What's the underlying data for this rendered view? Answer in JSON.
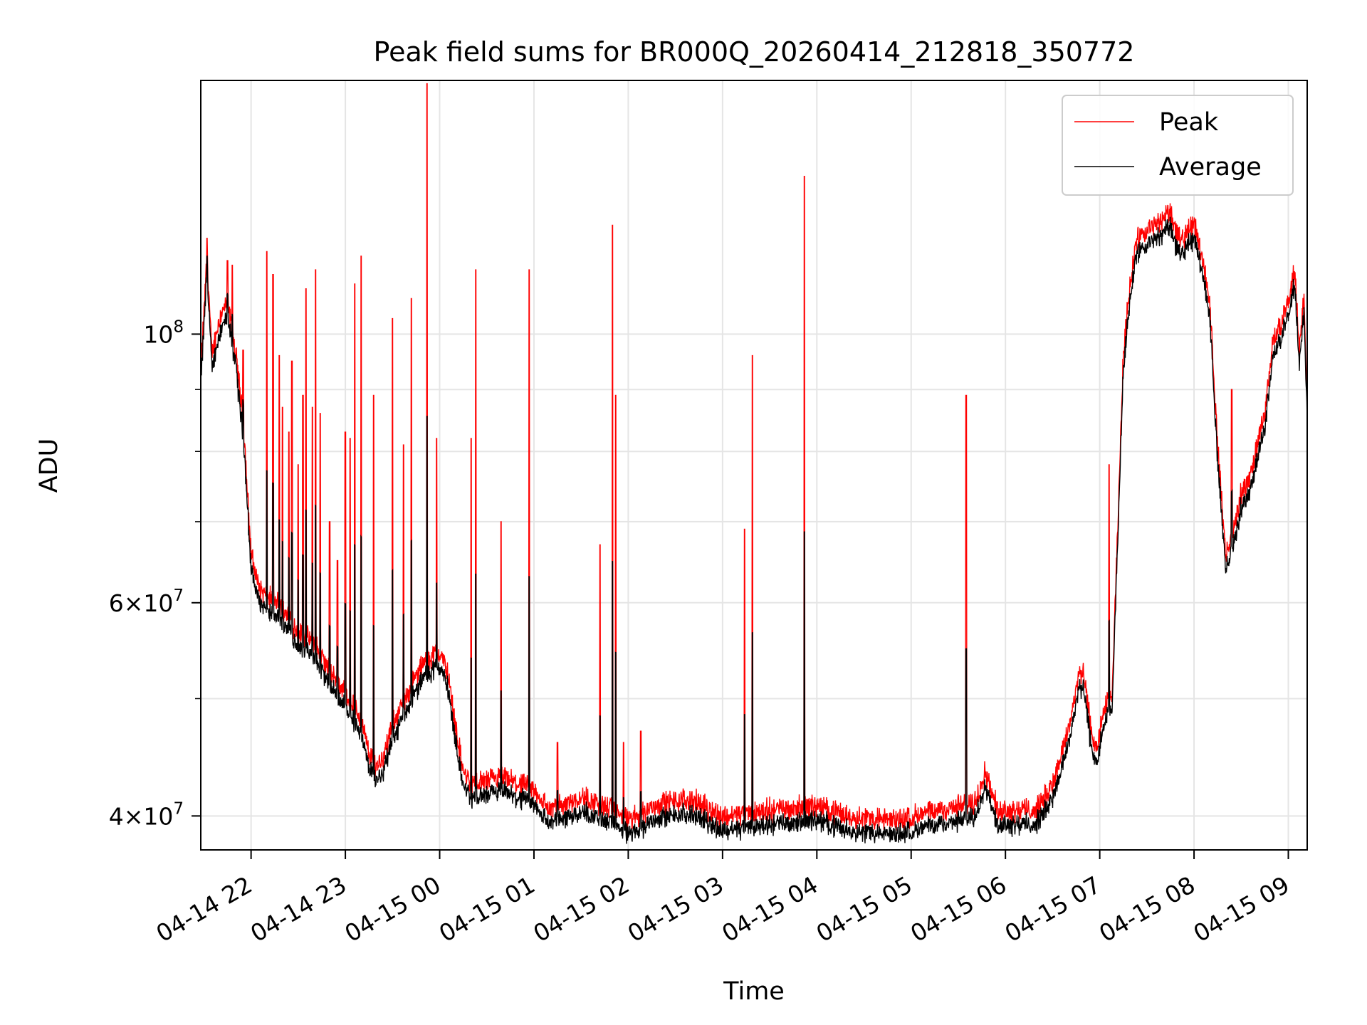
{
  "chart_data": {
    "type": "line",
    "title": "Peak field sums for BR000Q_20260414_212818_350772",
    "xlabel": "Time",
    "ylabel": "ADU",
    "yscale": "log",
    "grid": true,
    "legend_placement": "top-right",
    "x_ticks": [
      "04-14 22",
      "04-14 23",
      "04-15 00",
      "04-15 01",
      "04-15 02",
      "04-15 03",
      "04-15 04",
      "04-15 05",
      "04-15 06",
      "04-15 07",
      "04-15 08",
      "04-15 09"
    ],
    "y_ticks": [
      {
        "value": 40000000,
        "mantissa": "4",
        "exponent": "7"
      },
      {
        "value": 60000000,
        "mantissa": "6",
        "exponent": "7"
      },
      {
        "value": 100000000,
        "mantissa": "",
        "exponent": "8"
      }
    ],
    "xlim": [
      "2026-04-14 21:28",
      "2026-04-15 09:12"
    ],
    "ylim": [
      37500000,
      162000000
    ],
    "series": [
      {
        "name": "Peak",
        "color": "#ff0000",
        "baseline": [
          [
            "2026-04-14 21:28",
            92000000
          ],
          [
            "2026-04-14 21:32",
            115000000
          ],
          [
            "2026-04-14 21:35",
            95000000
          ],
          [
            "2026-04-14 21:40",
            102000000
          ],
          [
            "2026-04-14 21:45",
            105000000
          ],
          [
            "2026-04-14 21:50",
            96000000
          ],
          [
            "2026-04-14 21:55",
            84000000
          ],
          [
            "2026-04-14 22:00",
            65000000
          ],
          [
            "2026-04-14 22:05",
            61000000
          ],
          [
            "2026-04-14 22:10",
            60000000
          ],
          [
            "2026-04-14 22:20",
            59000000
          ],
          [
            "2026-04-14 22:30",
            56000000
          ],
          [
            "2026-04-14 22:40",
            55000000
          ],
          [
            "2026-04-14 22:50",
            52000000
          ],
          [
            "2026-04-14 23:00",
            50000000
          ],
          [
            "2026-04-14 23:10",
            47500000
          ],
          [
            "2026-04-14 23:15",
            44500000
          ],
          [
            "2026-04-14 23:20",
            43500000
          ],
          [
            "2026-04-14 23:25",
            44500000
          ],
          [
            "2026-04-14 23:30",
            47000000
          ],
          [
            "2026-04-14 23:40",
            50000000
          ],
          [
            "2026-04-14 23:50",
            53000000
          ],
          [
            "2026-04-15 00:00",
            54000000
          ],
          [
            "2026-04-15 00:05",
            52000000
          ],
          [
            "2026-04-15 00:10",
            47000000
          ],
          [
            "2026-04-15 00:15",
            43000000
          ],
          [
            "2026-04-15 00:20",
            42000000
          ],
          [
            "2026-04-15 00:40",
            42500000
          ],
          [
            "2026-04-15 01:00",
            41500000
          ],
          [
            "2026-04-15 01:10",
            40000000
          ],
          [
            "2026-04-15 01:30",
            41000000
          ],
          [
            "2026-04-15 01:50",
            40000000
          ],
          [
            "2026-04-15 02:00",
            39200000
          ],
          [
            "2026-04-15 02:20",
            40500000
          ],
          [
            "2026-04-15 02:40",
            40800000
          ],
          [
            "2026-04-15 03:00",
            39500000
          ],
          [
            "2026-04-15 03:30",
            40000000
          ],
          [
            "2026-04-15 04:00",
            40300000
          ],
          [
            "2026-04-15 04:20",
            39500000
          ],
          [
            "2026-04-15 04:50",
            39200000
          ],
          [
            "2026-04-15 05:20",
            40000000
          ],
          [
            "2026-04-15 05:40",
            40500000
          ],
          [
            "2026-04-15 05:47",
            43000000
          ],
          [
            "2026-04-15 05:55",
            40000000
          ],
          [
            "2026-04-15 06:20",
            40000000
          ],
          [
            "2026-04-15 06:30",
            42000000
          ],
          [
            "2026-04-15 06:40",
            46500000
          ],
          [
            "2026-04-15 06:47",
            52000000
          ],
          [
            "2026-04-15 06:50",
            51500000
          ],
          [
            "2026-04-15 06:55",
            46000000
          ],
          [
            "2026-04-15 06:58",
            45000000
          ],
          [
            "2026-04-15 07:03",
            48500000
          ],
          [
            "2026-04-15 07:08",
            50000000
          ],
          [
            "2026-04-15 07:12",
            72000000
          ],
          [
            "2026-04-15 07:15",
            95000000
          ],
          [
            "2026-04-15 07:18",
            105000000
          ],
          [
            "2026-04-15 07:23",
            118000000
          ],
          [
            "2026-04-15 07:30",
            120000000
          ],
          [
            "2026-04-15 07:40",
            123000000
          ],
          [
            "2026-04-15 07:45",
            125000000
          ],
          [
            "2026-04-15 07:50",
            118000000
          ],
          [
            "2026-04-15 08:00",
            122000000
          ],
          [
            "2026-04-15 08:05",
            115000000
          ],
          [
            "2026-04-15 08:10",
            105000000
          ],
          [
            "2026-04-15 08:15",
            80000000
          ],
          [
            "2026-04-15 08:20",
            65000000
          ],
          [
            "2026-04-15 08:25",
            68000000
          ],
          [
            "2026-04-15 08:30",
            73000000
          ],
          [
            "2026-04-15 08:35",
            75000000
          ],
          [
            "2026-04-15 08:45",
            85000000
          ],
          [
            "2026-04-15 08:50",
            97000000
          ],
          [
            "2026-04-15 09:00",
            105000000
          ],
          [
            "2026-04-15 09:04",
            112000000
          ],
          [
            "2026-04-15 09:07",
            96000000
          ],
          [
            "2026-04-15 09:10",
            106000000
          ],
          [
            "2026-04-15 09:12",
            86000000
          ]
        ],
        "spikes": [
          [
            "2026-04-14 21:32",
            120000000
          ],
          [
            "2026-04-14 21:45",
            115000000
          ],
          [
            "2026-04-14 21:48",
            114000000
          ],
          [
            "2026-04-14 21:50",
            95000000
          ],
          [
            "2026-04-14 21:55",
            97000000
          ],
          [
            "2026-04-14 22:10",
            117000000
          ],
          [
            "2026-04-14 22:14",
            112000000
          ],
          [
            "2026-04-14 22:18",
            96000000
          ],
          [
            "2026-04-14 22:20",
            87000000
          ],
          [
            "2026-04-14 22:24",
            83000000
          ],
          [
            "2026-04-14 22:26",
            95000000
          ],
          [
            "2026-04-14 22:30",
            78000000
          ],
          [
            "2026-04-14 22:33",
            89000000
          ],
          [
            "2026-04-14 22:35",
            109000000
          ],
          [
            "2026-04-14 22:39",
            87000000
          ],
          [
            "2026-04-14 22:41",
            113000000
          ],
          [
            "2026-04-14 22:44",
            86000000
          ],
          [
            "2026-04-14 22:50",
            70000000
          ],
          [
            "2026-04-14 22:55",
            65000000
          ],
          [
            "2026-04-14 23:00",
            83000000
          ],
          [
            "2026-04-14 23:03",
            82000000
          ],
          [
            "2026-04-14 23:06",
            110000000
          ],
          [
            "2026-04-14 23:10",
            116000000
          ],
          [
            "2026-04-14 23:18",
            89000000
          ],
          [
            "2026-04-14 23:30",
            103000000
          ],
          [
            "2026-04-14 23:37",
            81000000
          ],
          [
            "2026-04-14 23:42",
            107000000
          ],
          [
            "2026-04-14 23:52",
            161000000
          ],
          [
            "2026-04-14 23:58",
            82000000
          ],
          [
            "2026-04-15 00:20",
            82000000
          ],
          [
            "2026-04-15 00:23",
            113000000
          ],
          [
            "2026-04-15 00:39",
            70000000
          ],
          [
            "2026-04-15 00:57",
            113000000
          ],
          [
            "2026-04-15 01:15",
            46000000
          ],
          [
            "2026-04-15 01:42",
            67000000
          ],
          [
            "2026-04-15 01:50",
            123000000
          ],
          [
            "2026-04-15 01:52",
            89000000
          ],
          [
            "2026-04-15 01:57",
            46000000
          ],
          [
            "2026-04-15 02:08",
            47000000
          ],
          [
            "2026-04-15 03:14",
            69000000
          ],
          [
            "2026-04-15 03:19",
            96000000
          ],
          [
            "2026-04-15 03:52",
            135000000
          ],
          [
            "2026-04-15 05:35",
            89000000
          ],
          [
            "2026-04-15 07:06",
            78000000
          ],
          [
            "2026-04-15 08:24",
            90000000
          ]
        ]
      },
      {
        "name": "Average",
        "color": "#000000"
      }
    ]
  }
}
